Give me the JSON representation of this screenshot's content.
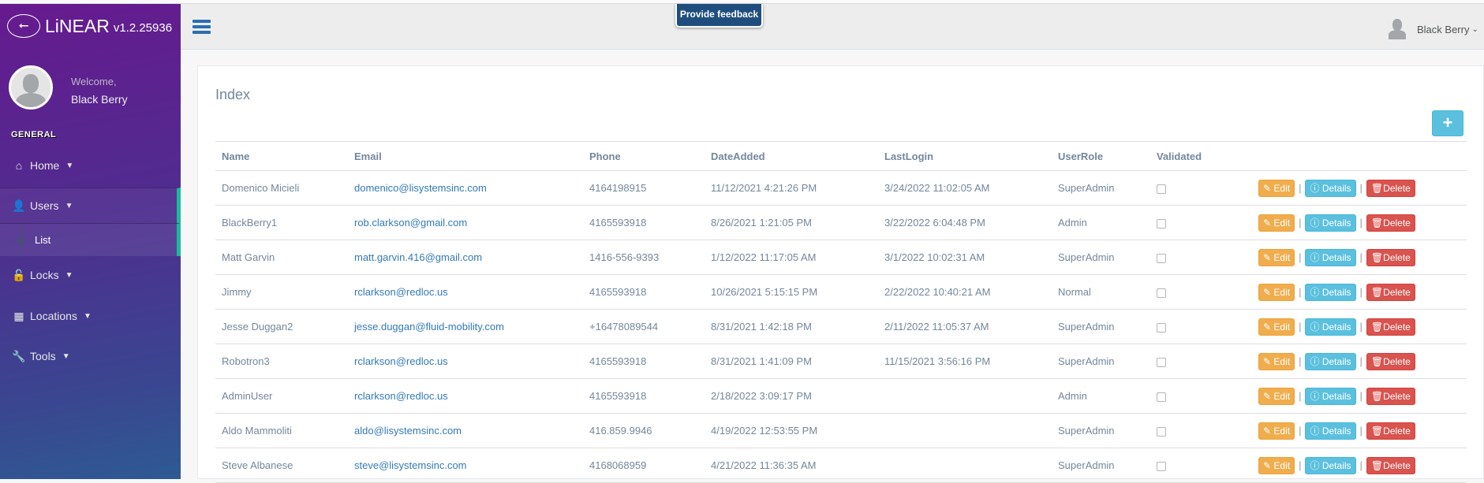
{
  "app": {
    "name": "LiNEAR",
    "version": "v1.2.25936"
  },
  "sidebar": {
    "welcome": "Welcome,",
    "user": "Black Berry",
    "section": "GENERAL",
    "items": [
      {
        "label": "Home",
        "icon": "home-icon"
      },
      {
        "label": "Users",
        "icon": "user-icon",
        "active": true
      },
      {
        "label": "Locks",
        "icon": "unlock-icon"
      },
      {
        "label": "Locations",
        "icon": "building-icon"
      },
      {
        "label": "Tools",
        "icon": "wrench-icon"
      }
    ],
    "subitem": "List"
  },
  "topbar": {
    "feedback": "Provide feedback",
    "user": "Black Berry"
  },
  "page": {
    "title": "Index",
    "add_label": "+"
  },
  "table": {
    "headers": [
      "Name",
      "Email",
      "Phone",
      "DateAdded",
      "LastLogin",
      "UserRole",
      "Validated"
    ],
    "actions": {
      "edit": "Edit",
      "details": "Details",
      "delete": "Delete"
    },
    "rows": [
      [
        "Domenico Micieli",
        "domenico@lisystemsinc.com",
        "4164198915",
        "11/12/2021 4:21:26 PM",
        "3/24/2022 11:02:05 AM",
        "SuperAdmin",
        false
      ],
      [
        "BlackBerry1",
        "rob.clarkson@gmail.com",
        "4165593918",
        "8/26/2021 1:21:05 PM",
        "3/22/2022 6:04:48 PM",
        "Admin",
        false
      ],
      [
        "Matt Garvin",
        "matt.garvin.416@gmail.com",
        "1416-556-9393",
        "1/12/2022 11:17:05 AM",
        "3/1/2022 10:02:31 AM",
        "SuperAdmin",
        false
      ],
      [
        "Jimmy",
        "rclarkson@redloc.us",
        "4165593918",
        "10/26/2021 5:15:15 PM",
        "2/22/2022 10:40:21 AM",
        "Normal",
        false
      ],
      [
        "Jesse Duggan2",
        "jesse.duggan@fluid-mobility.com",
        "+16478089544",
        "8/31/2021 1:42:18 PM",
        "2/11/2022 11:05:37 AM",
        "SuperAdmin",
        false
      ],
      [
        "Robotron3",
        "rclarkson@redloc.us",
        "4165593918",
        "8/31/2021 1:41:09 PM",
        "11/15/2021 3:56:16 PM",
        "SuperAdmin",
        false
      ],
      [
        "AdminUser",
        "rclarkson@redloc.us",
        "4165593918",
        "2/18/2022 3:09:17 PM",
        "",
        "Admin",
        false
      ],
      [
        "Aldo Mammoliti",
        "aldo@lisystemsinc.com",
        "416.859.9946",
        "4/19/2022 12:53:55 PM",
        "",
        "SuperAdmin",
        false
      ],
      [
        "Steve Albanese",
        "steve@lisystemsinc.com",
        "4168068959",
        "4/21/2022 11:36:35 AM",
        "",
        "SuperAdmin",
        false
      ]
    ]
  },
  "colors": {
    "accent": "#1abb9c",
    "edit": "#f0ad4e",
    "details": "#5bc0de",
    "delete": "#d9534f",
    "link": "#337ab7"
  }
}
